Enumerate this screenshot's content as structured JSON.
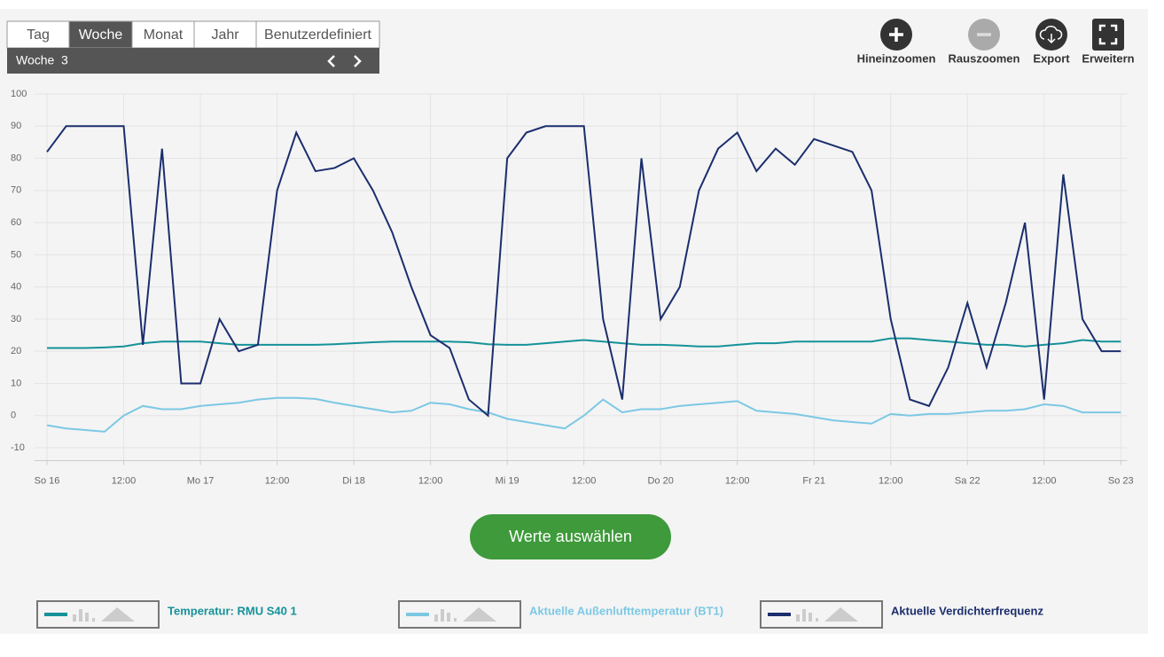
{
  "tabs": [
    "Tag",
    "Woche",
    "Monat",
    "Jahr",
    "Benutzerdefiniert"
  ],
  "period": {
    "label": "Woche",
    "number": "3"
  },
  "toolbar": [
    "Hineinzoomen",
    "Rauszoomen",
    "Export",
    "Erweitern"
  ],
  "button": "Werte auswählen",
  "chart_data": {
    "type": "line",
    "x": [
      0,
      3,
      6,
      9,
      12,
      15,
      18,
      21,
      24,
      27,
      30,
      33,
      36,
      39,
      42,
      45,
      48,
      51,
      54,
      57,
      60,
      63,
      66,
      69,
      72,
      75,
      78,
      81,
      84,
      87,
      90,
      93,
      96,
      99,
      102,
      105,
      108,
      111,
      114,
      117,
      120,
      123,
      126,
      129,
      132,
      135,
      138,
      141,
      144,
      147,
      150,
      153,
      156,
      159,
      162,
      165,
      168
    ],
    "xlim": [
      -2,
      169
    ],
    "xticks": [
      {
        "value": 0,
        "label": "So 16"
      },
      {
        "value": 12,
        "label": "12:00"
      },
      {
        "value": 24,
        "label": "Mo 17"
      },
      {
        "value": 36,
        "label": "12:00"
      },
      {
        "value": 48,
        "label": "Di 18"
      },
      {
        "value": 60,
        "label": "12:00"
      },
      {
        "value": 72,
        "label": "Mi 19"
      },
      {
        "value": 84,
        "label": "12:00"
      },
      {
        "value": 96,
        "label": "Do 20"
      },
      {
        "value": 108,
        "label": "12:00"
      },
      {
        "value": 120,
        "label": "Fr 21"
      },
      {
        "value": 132,
        "label": "12:00"
      },
      {
        "value": 144,
        "label": "Sa 22"
      },
      {
        "value": 156,
        "label": "12:00"
      },
      {
        "value": 168,
        "label": "So 23"
      }
    ],
    "ylim": [
      -14,
      100
    ],
    "yticks": [
      -10,
      0,
      10,
      20,
      30,
      40,
      50,
      60,
      70,
      80,
      90,
      100
    ],
    "grid": true,
    "series": [
      {
        "name": "Temperatur: RMU S40 1",
        "color": "#15929a",
        "values": [
          21,
          21,
          21,
          21.2,
          21.5,
          22.5,
          23,
          23,
          23,
          22.5,
          22,
          22,
          22,
          22,
          22,
          22.2,
          22.5,
          22.8,
          23,
          23,
          23,
          23,
          22.8,
          22.2,
          22,
          22,
          22.5,
          23,
          23.5,
          23,
          22.5,
          22,
          22,
          21.8,
          21.5,
          21.5,
          22,
          22.5,
          22.5,
          23,
          23,
          23,
          23,
          23,
          24,
          24,
          23.5,
          23,
          22.5,
          22,
          22,
          21.5,
          22,
          22.5,
          23.5,
          23,
          23
        ]
      },
      {
        "name": "Aktuelle Außenlufttemperatur (BT1)",
        "color": "#7cc8e4",
        "values": [
          -3,
          -4,
          -4.5,
          -5,
          0,
          3,
          2,
          2,
          3,
          3.5,
          4,
          5,
          5.5,
          5.5,
          5.2,
          4,
          3,
          2,
          1,
          1.5,
          4,
          3.5,
          2,
          1,
          -1,
          -2,
          -3,
          -4,
          0,
          5,
          1,
          2,
          2,
          3,
          3.5,
          4,
          4.5,
          1.5,
          1,
          0.5,
          -0.5,
          -1.5,
          -2,
          -2.5,
          0.5,
          0,
          0.5,
          0.5,
          1,
          1.5,
          1.5,
          2,
          3.5,
          3,
          1,
          1,
          1
        ]
      },
      {
        "name": "Aktuelle Verdichterfrequenz",
        "color": "#1b2e6d",
        "values": [
          82,
          90,
          90,
          90,
          90,
          22,
          83,
          10,
          10,
          30,
          20,
          22,
          70,
          88,
          76,
          77,
          80,
          70,
          57,
          40,
          25,
          21,
          5,
          0,
          80,
          88,
          90,
          90,
          90,
          30,
          5,
          80,
          30,
          40,
          70,
          83,
          88,
          76,
          83,
          78,
          86,
          84,
          82,
          70,
          30,
          5,
          3,
          15,
          35,
          15,
          35,
          60,
          5,
          75,
          30,
          20,
          20
        ]
      }
    ]
  }
}
